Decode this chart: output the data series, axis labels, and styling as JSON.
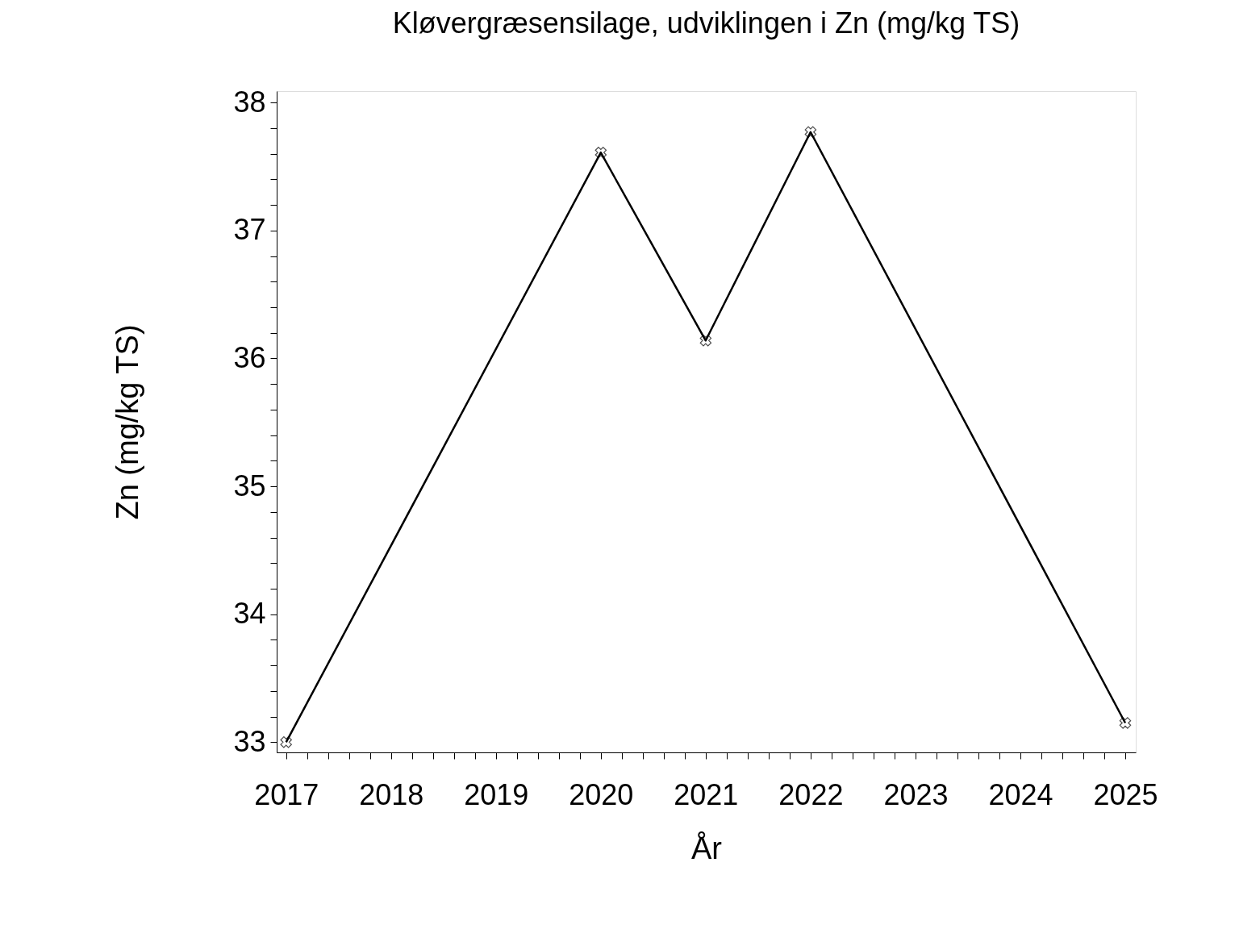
{
  "chart_data": {
    "type": "line",
    "title": "Kløvergræsensilage, udviklingen i Zn (mg/kg TS)",
    "xlabel": "År",
    "ylabel": "Zn (mg/kg TS)",
    "x": [
      2017,
      2020,
      2021,
      2022,
      2025
    ],
    "series": [
      {
        "color": "#000000",
        "values": [
          33.0,
          37.61,
          36.14,
          37.77,
          33.15
        ]
      }
    ],
    "xlim": [
      2016.91,
      2025.1
    ],
    "ylim": [
      32.92,
      38.09
    ],
    "xticks": [
      2017,
      {
        "value": 2017.2,
        "label": null
      },
      {
        "value": 2017.4,
        "label": null
      },
      {
        "value": 2017.6,
        "label": null
      },
      {
        "value": 2017.8,
        "label": null
      },
      2018,
      {
        "value": 2018.2,
        "label": null
      },
      {
        "value": 2018.4,
        "label": null
      },
      {
        "value": 2018.6,
        "label": null
      },
      {
        "value": 2018.8,
        "label": null
      },
      2019,
      {
        "value": 2019.2,
        "label": null
      },
      {
        "value": 2019.4,
        "label": null
      },
      {
        "value": 2019.6,
        "label": null
      },
      {
        "value": 2019.8,
        "label": null
      },
      2020,
      {
        "value": 2020.2,
        "label": null
      },
      {
        "value": 2020.4,
        "label": null
      },
      {
        "value": 2020.6,
        "label": null
      },
      {
        "value": 2020.8,
        "label": null
      },
      2021,
      {
        "value": 2021.2,
        "label": null
      },
      {
        "value": 2021.4,
        "label": null
      },
      {
        "value": 2021.6,
        "label": null
      },
      {
        "value": 2021.8,
        "label": null
      },
      2022,
      {
        "value": 2022.2,
        "label": null
      },
      {
        "value": 2022.4,
        "label": null
      },
      {
        "value": 2022.6,
        "label": null
      },
      {
        "value": 2022.8,
        "label": null
      },
      2023,
      {
        "value": 2023.2,
        "label": null
      },
      {
        "value": 2023.4,
        "label": null
      },
      {
        "value": 2023.6,
        "label": null
      },
      {
        "value": 2023.8,
        "label": null
      },
      2024,
      {
        "value": 2024.2,
        "label": null
      },
      {
        "value": 2024.4,
        "label": null
      },
      {
        "value": 2024.6,
        "label": null
      },
      {
        "value": 2024.8,
        "label": null
      },
      2025
    ],
    "yticks": [
      33,
      {
        "value": 33.2,
        "label": null
      },
      {
        "value": 33.4,
        "label": null
      },
      {
        "value": 33.6,
        "label": null
      },
      {
        "value": 33.8,
        "label": null
      },
      34,
      {
        "value": 34.2,
        "label": null
      },
      {
        "value": 34.4,
        "label": null
      },
      {
        "value": 34.6,
        "label": null
      },
      {
        "value": 34.8,
        "label": null
      },
      35,
      {
        "value": 35.2,
        "label": null
      },
      {
        "value": 35.4,
        "label": null
      },
      {
        "value": 35.6,
        "label": null
      },
      {
        "value": 35.8,
        "label": null
      },
      36,
      {
        "value": 36.2,
        "label": null
      },
      {
        "value": 36.4,
        "label": null
      },
      {
        "value": 36.6,
        "label": null
      },
      {
        "value": 36.8,
        "label": null
      },
      37,
      {
        "value": 37.2,
        "label": null
      },
      {
        "value": 37.4,
        "label": null
      },
      {
        "value": 37.6,
        "label": null
      },
      {
        "value": 37.8,
        "label": null
      },
      38
    ],
    "grid": false,
    "marker": "cross",
    "line_style": "solid"
  }
}
